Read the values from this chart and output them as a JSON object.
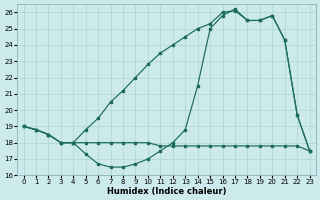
{
  "line_triangle_x": [
    0,
    1,
    2,
    3,
    4,
    5,
    6,
    7,
    8,
    9,
    10,
    11,
    12,
    13,
    14,
    15,
    16,
    17,
    18,
    19,
    20,
    21,
    22,
    23
  ],
  "line_triangle_y": [
    19.0,
    18.8,
    18.5,
    18.0,
    18.0,
    18.8,
    19.5,
    20.5,
    21.2,
    22.0,
    22.8,
    23.5,
    24.0,
    24.5,
    25.0,
    25.3,
    26.0,
    26.1,
    25.5,
    25.5,
    25.8,
    24.3,
    19.7,
    17.5
  ],
  "line_dip_x": [
    0,
    1,
    2,
    3,
    4,
    5,
    6,
    7,
    8,
    9,
    10,
    11,
    12,
    13,
    14,
    15,
    16,
    17,
    18,
    19,
    20,
    21,
    22,
    23
  ],
  "line_dip_y": [
    19.0,
    18.8,
    18.5,
    18.0,
    18.0,
    17.3,
    16.7,
    16.5,
    16.5,
    16.7,
    17.0,
    17.5,
    18.0,
    18.8,
    21.5,
    25.0,
    25.8,
    26.2,
    25.5,
    25.5,
    25.8,
    24.3,
    19.7,
    17.5
  ],
  "line_flat_x": [
    0,
    1,
    2,
    3,
    4,
    5,
    6,
    7,
    8,
    9,
    10,
    11,
    12,
    13,
    14,
    15,
    16,
    17,
    18,
    19,
    20,
    21,
    22,
    23
  ],
  "line_flat_y": [
    19.0,
    18.8,
    18.5,
    18.0,
    18.0,
    18.0,
    18.0,
    18.0,
    18.0,
    18.0,
    18.0,
    17.8,
    17.8,
    17.8,
    17.8,
    17.8,
    17.8,
    17.8,
    17.8,
    17.8,
    17.8,
    17.8,
    17.8,
    17.5
  ],
  "color": "#1a6b5a",
  "bg_color": "#cce9eb",
  "grid_color": "#aed4d7",
  "xlabel": "Humidex (Indice chaleur)",
  "xlim": [
    -0.5,
    23.5
  ],
  "ylim": [
    16,
    26.5
  ],
  "yticks": [
    16,
    17,
    18,
    19,
    20,
    21,
    22,
    23,
    24,
    25,
    26
  ],
  "xticks": [
    0,
    1,
    2,
    3,
    4,
    5,
    6,
    7,
    8,
    9,
    10,
    11,
    12,
    13,
    14,
    15,
    16,
    17,
    18,
    19,
    20,
    21,
    22,
    23
  ]
}
